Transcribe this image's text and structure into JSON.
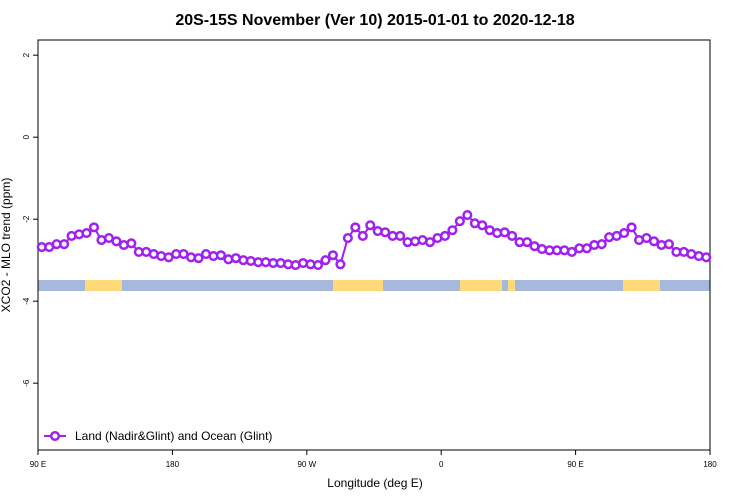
{
  "chart_data": {
    "type": "line",
    "title": "20S-15S November (Ver 10)   2015-01-01 to 2020-12-18",
    "x_label": "Longitude (deg E)",
    "y_label": "XCO2 - MLO trend (ppm)",
    "x": [
      92.5,
      97.5,
      102.5,
      107.5,
      112.5,
      117.5,
      122.5,
      127.5,
      132.5,
      137.5,
      142.5,
      147.5,
      152.5,
      157.5,
      162.5,
      167.5,
      172.5,
      177.5,
      182.5,
      187.5,
      192.5,
      197.5,
      202.5,
      207.5,
      212.5,
      217.5,
      222.5,
      227.5,
      232.5,
      237.5,
      242.5,
      247.5,
      252.5,
      257.5,
      262.5,
      267.5,
      272.5,
      277.5,
      282.5,
      287.5,
      292.5,
      297.5,
      302.5,
      307.5,
      312.5,
      317.5,
      322.5,
      327.5,
      332.5,
      337.5,
      342.5,
      347.5,
      352.5,
      357.5,
      362.5,
      367.5,
      372.5,
      377.5,
      382.5,
      387.5,
      392.5,
      397.5,
      402.5,
      407.5,
      412.5,
      417.5,
      422.5,
      427.5,
      432.5,
      437.5,
      442.5,
      447.5,
      452.5,
      457.5,
      462.5,
      467.5,
      472.5,
      477.5,
      482.5,
      487.5,
      492.5,
      497.5,
      502.5,
      507.5,
      512.5,
      517.5,
      522.5,
      527.5,
      532.5,
      537.5
    ],
    "series": [
      {
        "name": "Land (Nadir&Glint) and Ocean (Glint)",
        "color": "#a020f0",
        "values": [
          -2.68,
          -2.68,
          -2.61,
          -2.61,
          -2.41,
          -2.37,
          -2.34,
          -2.2,
          -2.51,
          -2.46,
          -2.54,
          -2.63,
          -2.59,
          -2.8,
          -2.8,
          -2.85,
          -2.9,
          -2.93,
          -2.85,
          -2.85,
          -2.93,
          -2.95,
          -2.85,
          -2.9,
          -2.88,
          -2.98,
          -2.95,
          -3.0,
          -3.02,
          -3.05,
          -3.05,
          -3.07,
          -3.07,
          -3.1,
          -3.12,
          -3.07,
          -3.1,
          -3.12,
          -3.0,
          -2.88,
          -3.1,
          -2.46,
          -2.2,
          -2.41,
          -2.15,
          -2.29,
          -2.32,
          -2.41,
          -2.41,
          -2.56,
          -2.54,
          -2.51,
          -2.56,
          -2.46,
          -2.41,
          -2.27,
          -2.05,
          -1.9,
          -2.1,
          -2.15,
          -2.27,
          -2.34,
          -2.32,
          -2.41,
          -2.56,
          -2.56,
          -2.66,
          -2.73,
          -2.76,
          -2.76,
          -2.76,
          -2.8,
          -2.71,
          -2.71,
          -2.63,
          -2.61,
          -2.44,
          -2.41,
          -2.34,
          -2.2,
          -2.51,
          -2.46,
          -2.54,
          -2.63,
          -2.61,
          -2.8,
          -2.8,
          -2.85,
          -2.9,
          -2.93
        ]
      }
    ],
    "xlim": [
      90,
      540
    ],
    "xticks": [
      {
        "value": 90,
        "label": "90 E"
      },
      180,
      {
        "value": 270,
        "label": "90 W"
      },
      {
        "value": 360,
        "label": "0"
      },
      {
        "value": 450,
        "label": "90 E"
      },
      {
        "value": 540,
        "label": "180"
      }
    ],
    "ylim": [
      -7.63,
      2.37
    ],
    "yticks": [
      2,
      0,
      -2,
      -4,
      -6
    ],
    "legend": "bottomleft"
  }
}
